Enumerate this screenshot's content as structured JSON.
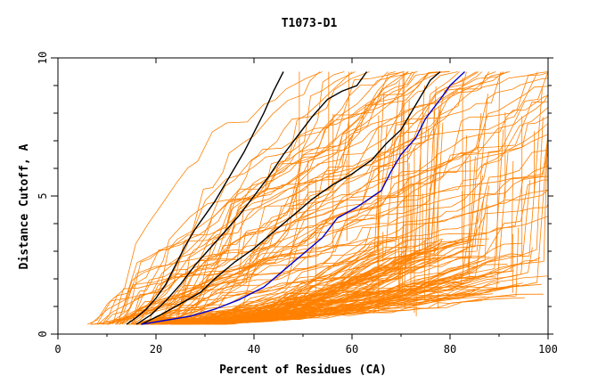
{
  "chart_data": {
    "type": "line",
    "title": "T1073-D1",
    "xlabel": "Percent of Residues (CA)",
    "ylabel": "Distance Cutoff, A",
    "xlim": [
      0,
      100
    ],
    "ylim": [
      0,
      10
    ],
    "x_ticks": [
      0,
      20,
      40,
      60,
      80,
      100
    ],
    "y_ticks": [
      0,
      5,
      10
    ],
    "grid": false,
    "colors": {
      "background": "#ffffff",
      "axis": "#000000",
      "bulk": "#ff8000",
      "highlight_black": "#000000",
      "highlight_blue": "#0000cc"
    },
    "highlight_series": [
      {
        "color": "#000000",
        "points": [
          [
            14,
            0.35
          ],
          [
            16,
            0.6
          ],
          [
            18,
            0.9
          ],
          [
            20,
            1.3
          ],
          [
            22,
            1.8
          ],
          [
            24,
            2.5
          ],
          [
            26,
            3.2
          ],
          [
            28,
            3.8
          ],
          [
            30,
            4.3
          ],
          [
            32,
            4.8
          ],
          [
            34,
            5.4
          ],
          [
            36,
            6.0
          ],
          [
            38,
            6.6
          ],
          [
            40,
            7.3
          ],
          [
            42,
            8.0
          ],
          [
            44,
            8.8
          ],
          [
            46,
            9.5
          ]
        ]
      },
      {
        "color": "#000000",
        "points": [
          [
            16,
            0.35
          ],
          [
            19,
            0.7
          ],
          [
            22,
            1.2
          ],
          [
            25,
            1.8
          ],
          [
            28,
            2.5
          ],
          [
            31,
            3.1
          ],
          [
            34,
            3.7
          ],
          [
            37,
            4.3
          ],
          [
            40,
            5.0
          ],
          [
            43,
            5.7
          ],
          [
            46,
            6.5
          ],
          [
            49,
            7.2
          ],
          [
            52,
            7.9
          ],
          [
            55,
            8.5
          ],
          [
            58,
            8.8
          ],
          [
            61,
            9.0
          ],
          [
            63,
            9.5
          ]
        ]
      },
      {
        "color": "#000000",
        "points": [
          [
            17,
            0.35
          ],
          [
            21,
            0.7
          ],
          [
            25,
            1.1
          ],
          [
            29,
            1.5
          ],
          [
            32,
            2.0
          ],
          [
            36,
            2.6
          ],
          [
            40,
            3.1
          ],
          [
            44,
            3.7
          ],
          [
            48,
            4.3
          ],
          [
            52,
            4.9
          ],
          [
            56,
            5.4
          ],
          [
            60,
            5.8
          ],
          [
            64,
            6.3
          ],
          [
            67,
            6.9
          ],
          [
            70,
            7.4
          ],
          [
            72,
            8.0
          ],
          [
            74,
            8.6
          ],
          [
            76,
            9.2
          ],
          [
            78,
            9.5
          ]
        ]
      },
      {
        "color": "#0000cc",
        "points": [
          [
            17,
            0.35
          ],
          [
            22,
            0.5
          ],
          [
            27,
            0.65
          ],
          [
            32,
            0.9
          ],
          [
            37,
            1.25
          ],
          [
            42,
            1.7
          ],
          [
            46,
            2.3
          ],
          [
            50,
            2.9
          ],
          [
            54,
            3.5
          ],
          [
            57,
            4.2
          ],
          [
            61,
            4.6
          ],
          [
            66,
            5.2
          ],
          [
            68,
            5.9
          ],
          [
            70,
            6.5
          ],
          [
            73,
            7.1
          ],
          [
            75,
            7.8
          ],
          [
            78,
            8.5
          ],
          [
            80,
            9.0
          ],
          [
            83,
            9.5
          ]
        ]
      }
    ]
  }
}
